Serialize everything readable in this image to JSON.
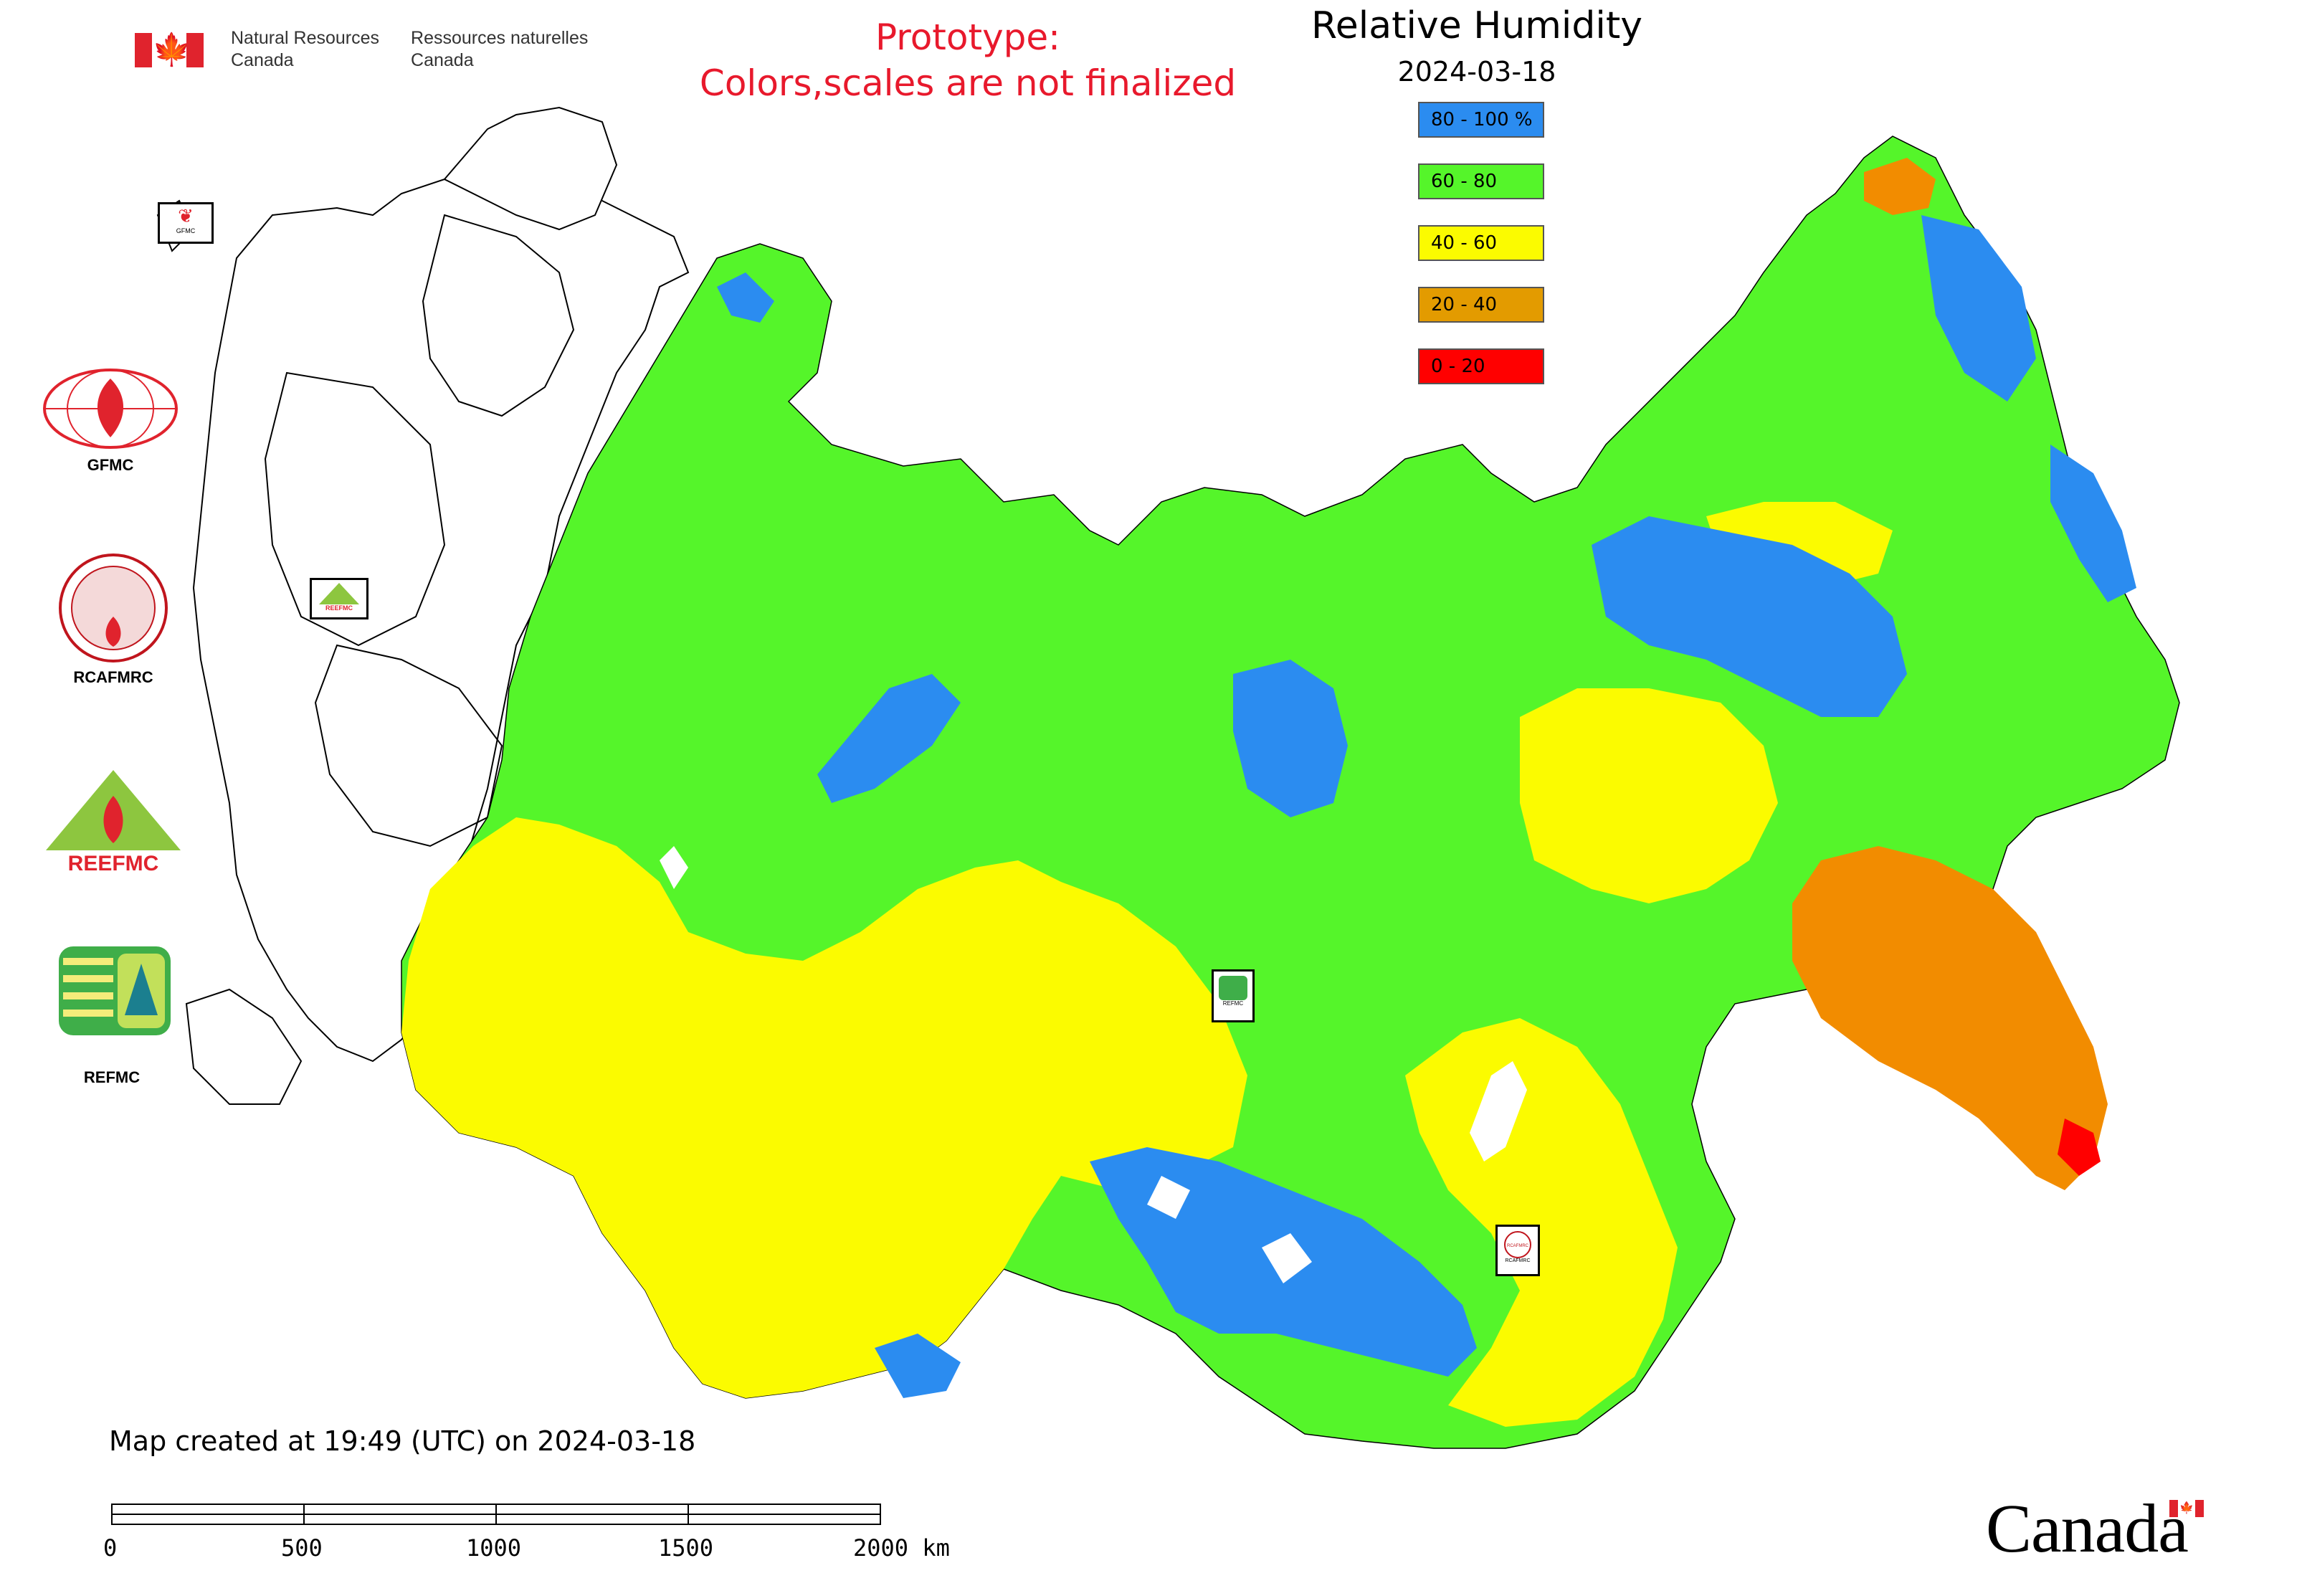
{
  "header": {
    "agency_en": [
      "Natural Resources",
      "Canada"
    ],
    "agency_fr": [
      "Ressources naturelles",
      "Canada"
    ],
    "prototype_note": [
      "Prototype:",
      "Colors,scales are not finalized"
    ]
  },
  "legend": {
    "title": "Relative Humidity",
    "date": "2024-03-18",
    "items": [
      {
        "label": "80 - 100 %",
        "color": "#2b8cf0"
      },
      {
        "label": "60 - 80",
        "color": "#55f52a"
      },
      {
        "label": "40 - 60",
        "color": "#fbfb00"
      },
      {
        "label": "20 - 40",
        "color": "#e39b00"
      },
      {
        "label": "0 - 20",
        "color": "#ff0000"
      }
    ]
  },
  "logos": [
    {
      "label": "GFMC",
      "icon": "gfmc-logo-icon"
    },
    {
      "label": "RCAFMRC",
      "icon": "rcafmrc-logo-icon"
    },
    {
      "label": "REEFMC",
      "icon": "reefmc-logo-icon"
    },
    {
      "label": "REFMC",
      "icon": "refmc-logo-icon"
    }
  ],
  "map_badges": {
    "gfmc": "GFMC",
    "reefmc": "REEFMC",
    "refmc": "REFMC",
    "rcafmrc": "RCAFMRC",
    "rcafmrc_seal": "RCAFMRC",
    "reefmc_logo_text": "REEFMC"
  },
  "footer": {
    "created": "Map created at 19:49 (UTC) on 2024-03-18",
    "scale_labels": [
      "0",
      "500",
      "1000",
      "1500",
      "2000 km"
    ],
    "wordmark": "Canada"
  },
  "colors": {
    "humidity_80_100": "#2b8cf0",
    "humidity_60_80": "#55f52a",
    "humidity_40_60": "#fbfb00",
    "humidity_20_40": "#e39b00",
    "humidity_0_20": "#ff0000",
    "orange_region": "#f28c00",
    "canada_red": "#e0232d",
    "prototype_red": "#e8192c"
  }
}
